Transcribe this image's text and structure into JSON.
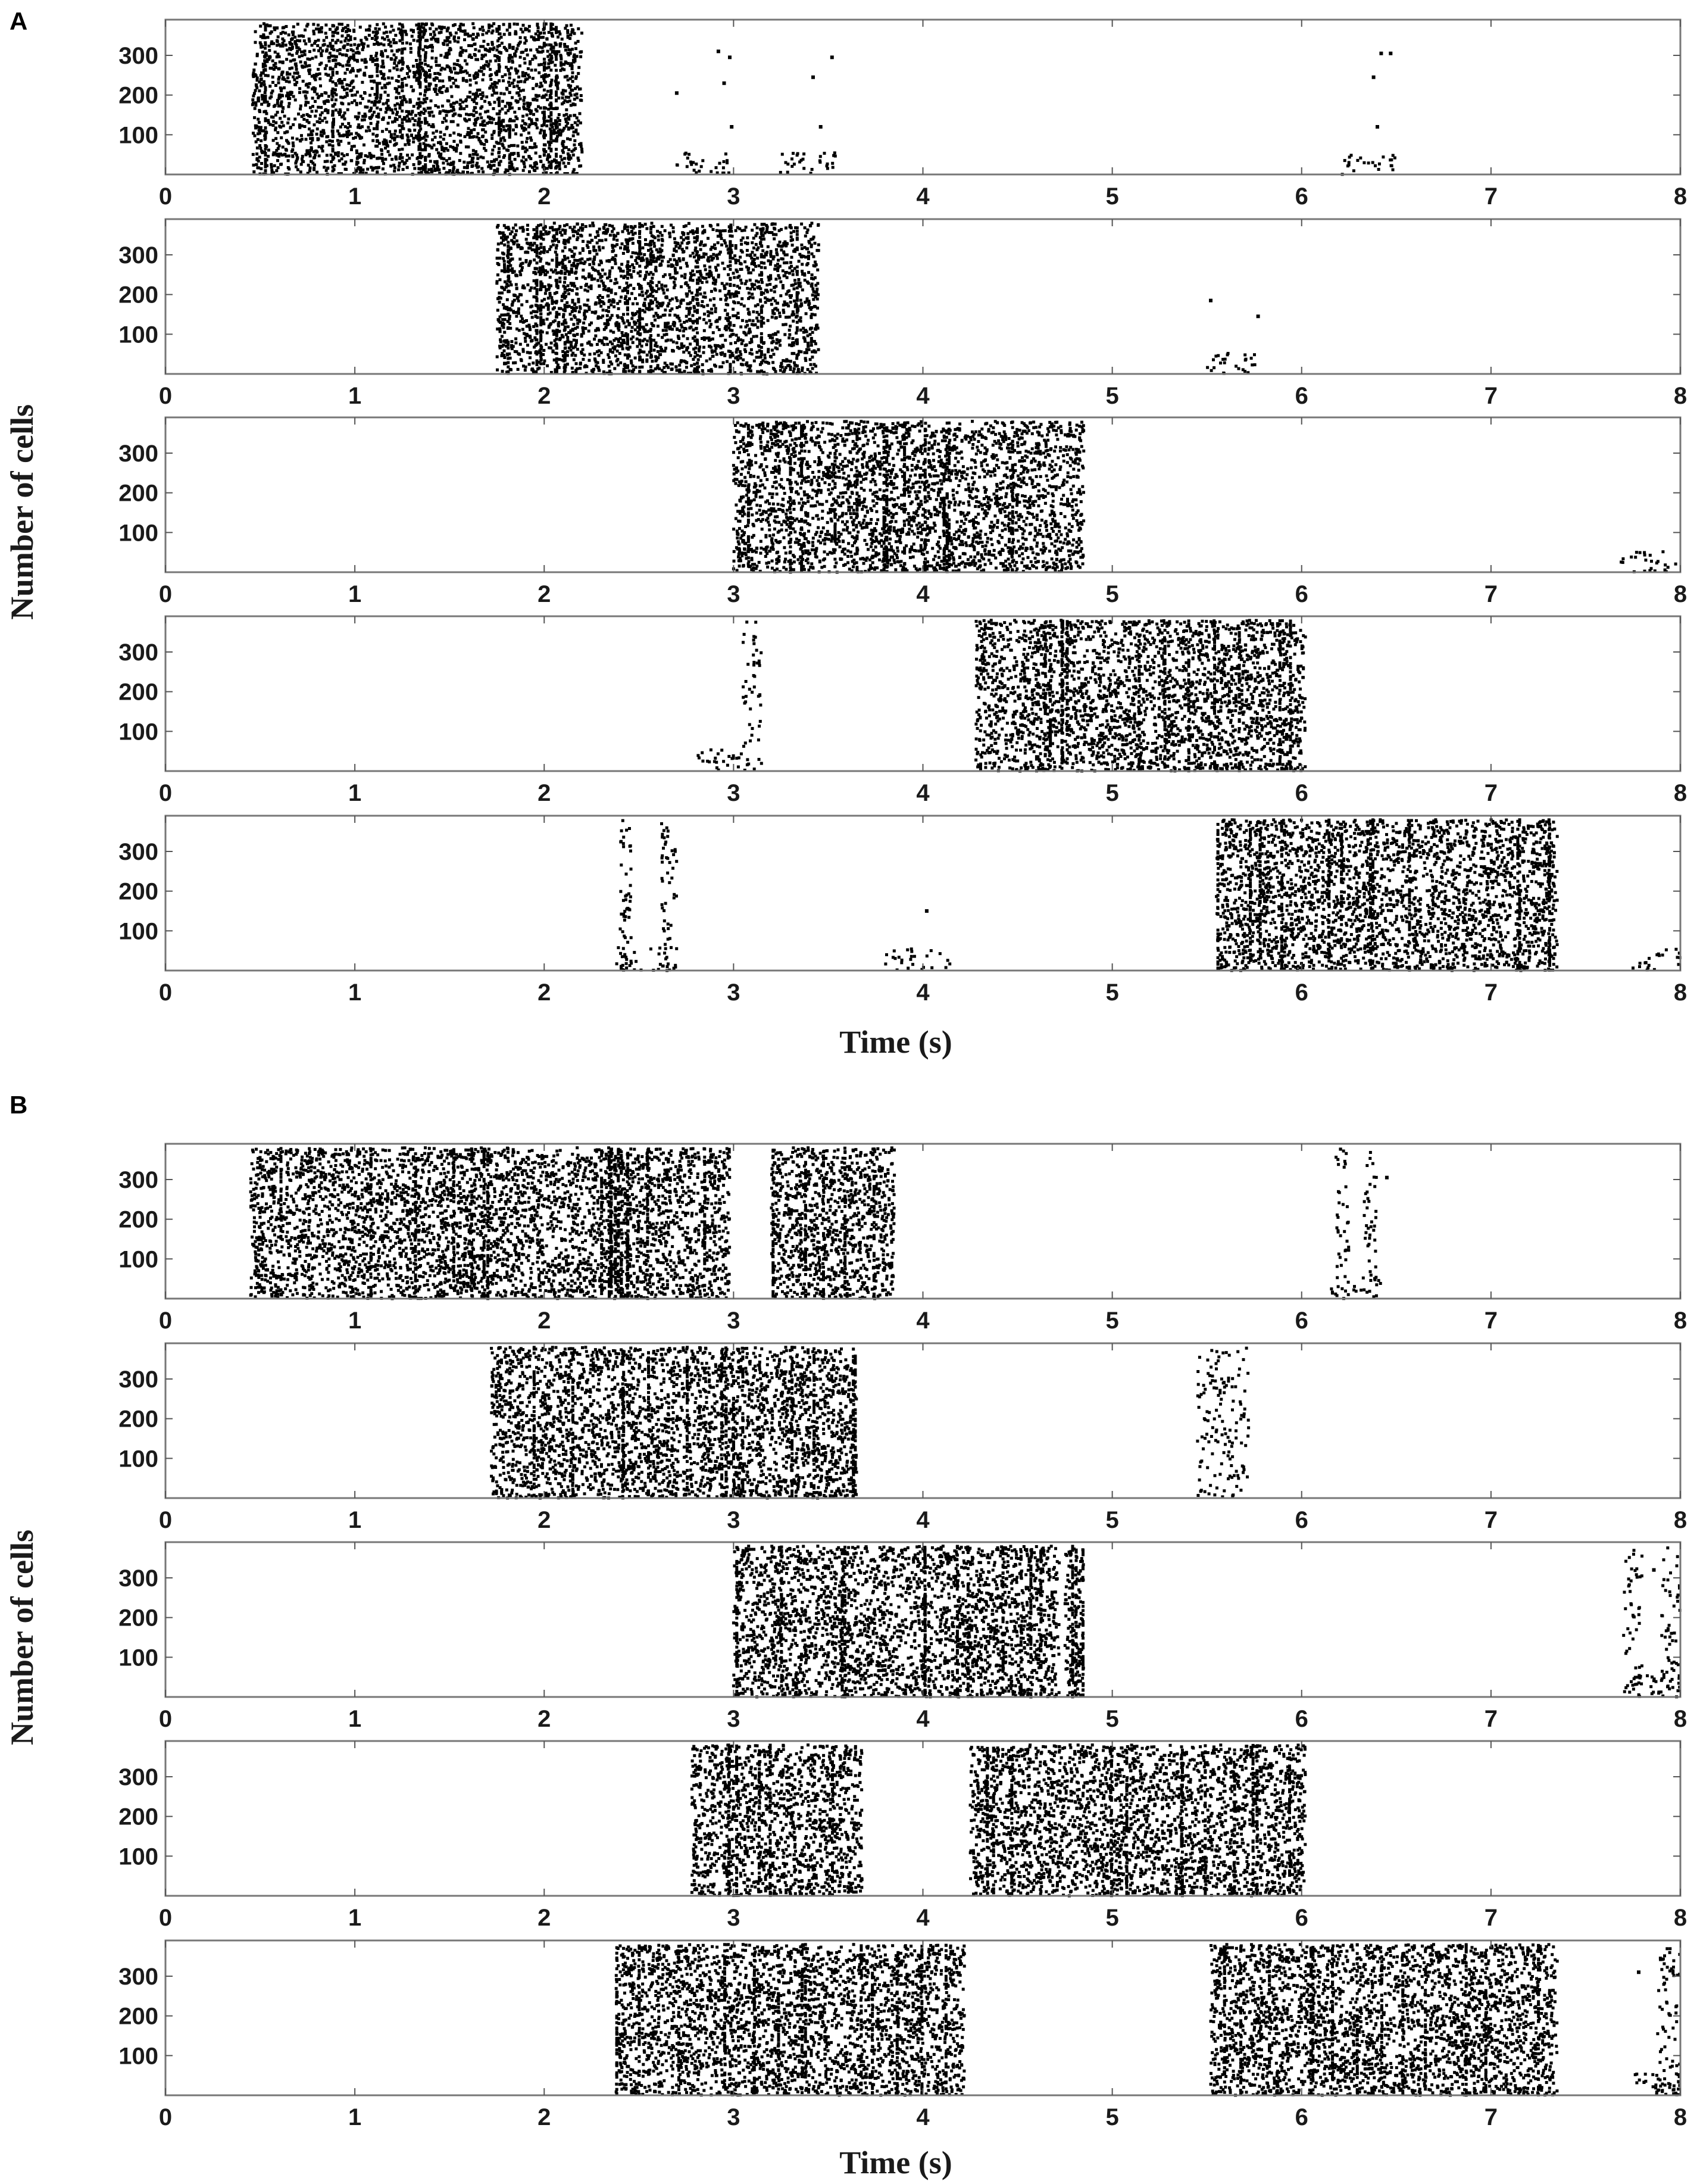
{
  "chart_data": [
    {
      "panel": "A",
      "type": "scatter",
      "xlabel": "Time (s)",
      "ylabel": "Number of cells",
      "rows": [
        {
          "bursts": [
            [
              0.46,
              2.2,
              0,
              380
            ]
          ],
          "side": [
            [
              2.7,
              3.0,
              0,
              55,
              28
            ],
            [
              3.22,
              3.56,
              0,
              55,
              30
            ],
            [
              6.18,
              6.5,
              0,
              55,
              24
            ]
          ],
          "isolated": [
            [
              2.7,
              205
            ],
            [
              2.92,
              310
            ],
            [
              2.98,
              295
            ],
            [
              2.95,
              230
            ],
            [
              2.99,
              120
            ],
            [
              3.42,
              245
            ],
            [
              3.46,
              120
            ],
            [
              3.52,
              295
            ],
            [
              6.38,
              245
            ],
            [
              6.42,
              305
            ],
            [
              6.47,
              305
            ],
            [
              6.4,
              120
            ]
          ]
        },
        {
          "bursts": [
            [
              1.75,
              3.45,
              0,
              380
            ]
          ],
          "side": [
            [
              5.5,
              5.78,
              0,
              55,
              26
            ]
          ],
          "isolated": [
            [
              5.52,
              185
            ],
            [
              5.77,
              145
            ]
          ]
        },
        {
          "bursts": [
            [
              3.0,
              4.85,
              0,
              380
            ]
          ],
          "side": [
            [
              7.68,
              7.98,
              0,
              55,
              26
            ]
          ],
          "isolated": []
        },
        {
          "bursts": [
            [
              4.28,
              6.02,
              0,
              380
            ]
          ],
          "side": [
            [
              2.8,
              3.05,
              0,
              55,
              24
            ],
            [
              3.05,
              3.15,
              0,
              380,
              50
            ]
          ],
          "isolated": []
        },
        {
          "bursts": [
            [
              5.55,
              7.35,
              0,
              380
            ]
          ],
          "side": [
            [
              2.38,
              2.7,
              0,
              60,
              30
            ],
            [
              2.4,
              2.46,
              0,
              380,
              50
            ],
            [
              2.62,
              2.7,
              0,
              380,
              50
            ],
            [
              3.8,
              4.15,
              0,
              55,
              26
            ],
            [
              7.75,
              8.0,
              0,
              55,
              20
            ]
          ],
          "isolated": [
            [
              4.02,
              150
            ]
          ]
        }
      ],
      "xlim": [
        0,
        8
      ],
      "ylim": [
        0,
        390
      ],
      "xticks": [
        0,
        1,
        2,
        3,
        4,
        5,
        6,
        7,
        8
      ],
      "yticks": [
        100,
        200,
        300
      ]
    },
    {
      "panel": "B",
      "type": "scatter",
      "xlabel": "Time (s)",
      "ylabel": "Number of cells",
      "rows": [
        {
          "bursts": [
            [
              0.45,
              2.98,
              0,
              380
            ],
            [
              3.2,
              3.85,
              0,
              380
            ]
          ],
          "side": [
            [
              6.15,
              6.42,
              0,
              55,
              20
            ],
            [
              6.18,
              6.25,
              0,
              380,
              40
            ],
            [
              6.33,
              6.4,
              0,
              380,
              40
            ]
          ],
          "isolated": [
            [
              6.45,
              305
            ]
          ]
        },
        {
          "bursts": [
            [
              1.72,
              3.65,
              0,
              380
            ]
          ],
          "side": [
            [
              5.45,
              5.72,
              0,
              380,
              140
            ]
          ],
          "isolated": []
        },
        {
          "bursts": [
            [
              3.0,
              4.72,
              0,
              380
            ],
            [
              4.75,
              4.85,
              0,
              380
            ]
          ],
          "side": [
            [
              7.7,
              8.0,
              0,
              55,
              30
            ],
            [
              7.7,
              7.8,
              0,
              380,
              50
            ],
            [
              7.9,
              8.0,
              0,
              380,
              50
            ]
          ],
          "isolated": [
            [
              7.86,
              320
            ]
          ]
        },
        {
          "bursts": [
            [
              2.78,
              3.68,
              0,
              380
            ],
            [
              4.25,
              6.02,
              0,
              380
            ]
          ],
          "side": [],
          "isolated": []
        },
        {
          "bursts": [
            [
              2.38,
              4.22,
              0,
              380
            ],
            [
              5.52,
              7.35,
              0,
              380
            ]
          ],
          "side": [
            [
              7.75,
              8.0,
              0,
              55,
              30
            ],
            [
              7.88,
              8.0,
              0,
              380,
              70
            ]
          ],
          "isolated": [
            [
              7.78,
              310
            ]
          ]
        }
      ],
      "xlim": [
        0,
        8
      ],
      "ylim": [
        0,
        390
      ],
      "xticks": [
        0,
        1,
        2,
        3,
        4,
        5,
        6,
        7,
        8
      ],
      "yticks": [
        100,
        200,
        300
      ]
    }
  ],
  "labels": {
    "panel_a": "A",
    "panel_b": "B",
    "xlabel": "Time (s)",
    "ylabel": "Number of cells"
  }
}
